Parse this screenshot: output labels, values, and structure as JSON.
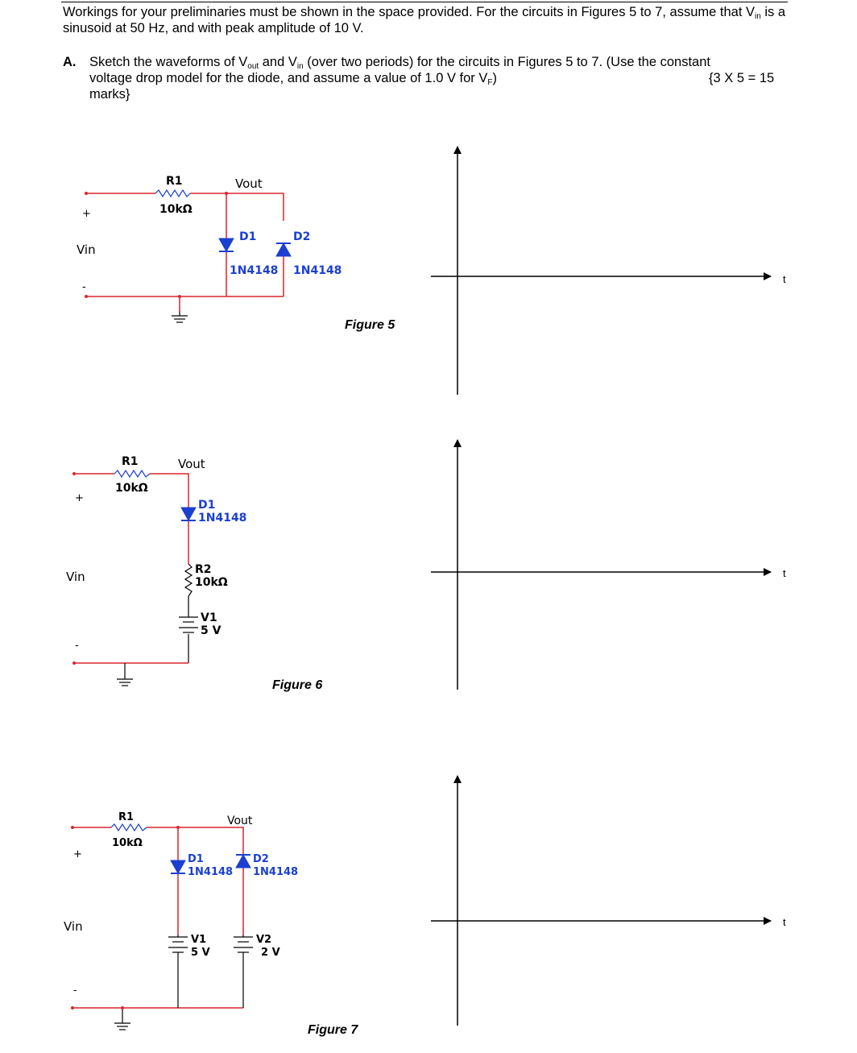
{
  "header": {
    "intro": {
      "text1": "Workings for your preliminaries must be shown in the space provided.  For the circuits in Figures 5 to 7, assume that V",
      "sub_in": "in",
      "text2": " is a sinusoid at 50 Hz, and with peak amplitude of 10 V."
    },
    "question": {
      "label": "A.",
      "line1_a": "Sketch the waveforms of V",
      "sub_out": "out",
      "line1_b": " and V",
      "sub_in": "in",
      "line1_c": " (over two periods) for the circuits in Figures 5 to 7.  (Use the constant",
      "line2_a": "voltage drop model for the diode, and assume a value of 1.0 V for V",
      "sub_f": "F",
      "line2_b": ")",
      "marks": "{3 X  5 = 15",
      "line3": "marks}"
    }
  },
  "figures": [
    {
      "caption": "Figure 5",
      "vin": "Vin",
      "plus": "+",
      "minus": "-",
      "r1_name": "R1",
      "r1_value": "10kΩ",
      "vout": "Vout",
      "d1_name": "D1",
      "d1_part": "1N4148",
      "d2_name": "D2",
      "d2_part": "1N4148",
      "axis_label": "t"
    },
    {
      "caption": "Figure 6",
      "vin": "Vin",
      "plus": "+",
      "minus": "-",
      "r1_name": "R1",
      "r1_value": "10kΩ",
      "vout": "Vout",
      "d1_name": "D1",
      "d1_part": "1N4148",
      "r2_name": "R2",
      "r2_value": "10kΩ",
      "v1_name": "V1",
      "v1_value": "5 V",
      "axis_label": "t"
    },
    {
      "caption": "Figure 7",
      "vin": "Vin",
      "plus": "+",
      "minus": "-",
      "r1_name": "R1",
      "r1_value": "10kΩ",
      "vout": "Vout",
      "d1_name": "D1",
      "d1_part": "1N4148",
      "d2_name": "D2",
      "d2_part": "1N4148",
      "v1_name": "V1",
      "v1_value": "5 V",
      "v2_name": "V2",
      "v2_value": "2 V",
      "axis_label": "t"
    }
  ],
  "colors": {
    "wire": "#d8262b",
    "component": "#1b3fd1",
    "label": "#000000"
  }
}
